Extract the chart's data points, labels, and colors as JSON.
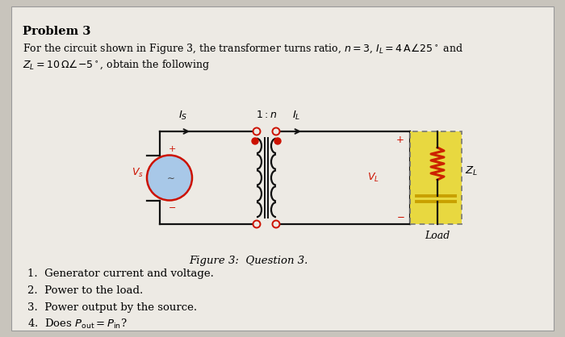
{
  "bg_color": "#c8c4bc",
  "paper_color": "#edeae4",
  "title": "Problem 3",
  "line1": "For the circuit shown in Figure 3, the transformer turns ratio, $n = 3$, $I_L = 4\\,\\mathrm{A}\\angle25^\\circ$ and",
  "line2": "$Z_L = 10\\,\\Omega\\angle{-5^\\circ}$, obtain the following",
  "figure_caption": "Figure 3:  Question 3.",
  "items": [
    "1.  Generator current and voltage.",
    "2.  Power to the load.",
    "3.  Power output by the source.",
    "4.  Does $P_{\\mathrm{out}} = P_{\\mathrm{in}}$?"
  ],
  "wire_color": "#111111",
  "red_color": "#cc1100",
  "src_face": "#a8c8e8",
  "zl_face": "#e8d840",
  "res_color": "#cc2200",
  "cap_color": "#c8a000"
}
